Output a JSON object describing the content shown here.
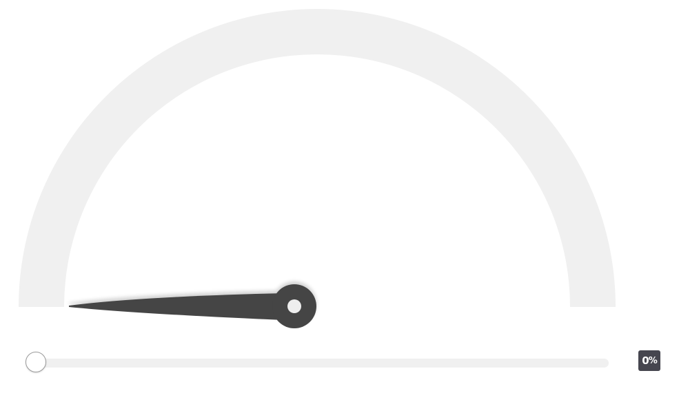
{
  "gauge": {
    "value": 0,
    "min": 0,
    "max": 100,
    "track_color": "#f0f0f0",
    "needle_color": "#444444",
    "hub_dot_color": "#eeeeee"
  },
  "slider": {
    "value": 0,
    "min": 0,
    "max": 100,
    "track_color": "#f0f0f0"
  },
  "readout": {
    "value": "0",
    "unit": "%",
    "background": "#46464f"
  }
}
